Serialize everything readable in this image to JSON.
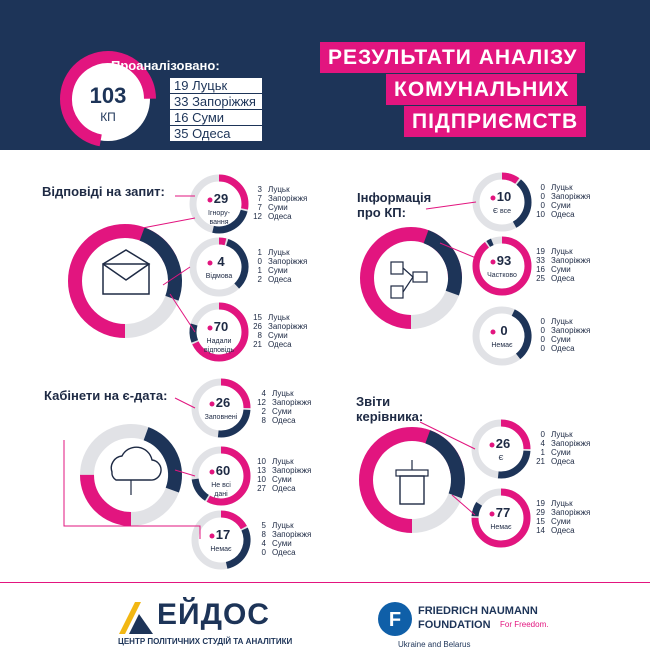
{
  "header": {
    "title_lines": [
      "РЕЗУЛЬТАТИ АНАЛІЗУ",
      "КОМУНАЛЬНИХ",
      "ПІДПРИЄМСТВ"
    ],
    "total_value": "103",
    "total_unit": "КП",
    "analyzed_label": "Проаналізовано:",
    "cities": [
      {
        "count": "19",
        "name": "Луцьк"
      },
      {
        "count": "33",
        "name": "Запоріжжя"
      },
      {
        "count": "16",
        "name": "Суми"
      },
      {
        "count": "35",
        "name": "Одеса"
      }
    ]
  },
  "sections": {
    "responses": {
      "title": "Відповіді на запит:",
      "items": [
        {
          "value": "29",
          "label": "Ігнору-\nвання",
          "fraction": 0.28,
          "cities": [
            [
              "3",
              "Луцьк"
            ],
            [
              "7",
              "Запоріжжя"
            ],
            [
              "7",
              "Суми"
            ],
            [
              "12",
              "Одеса"
            ]
          ]
        },
        {
          "value": "4",
          "label": "Відмова",
          "fraction": 0.04,
          "cities": [
            [
              "1",
              "Луцьк"
            ],
            [
              "0",
              "Запоріжжя"
            ],
            [
              "1",
              "Суми"
            ],
            [
              "2",
              "Одеса"
            ]
          ]
        },
        {
          "value": "70",
          "label": "Надали\nвідповідь",
          "fraction": 0.68,
          "cities": [
            [
              "15",
              "Луцьк"
            ],
            [
              "26",
              "Запоріжжя"
            ],
            [
              "8",
              "Суми"
            ],
            [
              "21",
              "Одеса"
            ]
          ]
        }
      ]
    },
    "info": {
      "title": "Інформація\nпро КП:",
      "items": [
        {
          "value": "10",
          "label": "Є все",
          "fraction": 0.1,
          "cities": [
            [
              "0",
              "Луцьк"
            ],
            [
              "0",
              "Запоріжжя"
            ],
            [
              "0",
              "Суми"
            ],
            [
              "10",
              "Одеса"
            ]
          ]
        },
        {
          "value": "93",
          "label": "Частково",
          "fraction": 0.9,
          "cities": [
            [
              "19",
              "Луцьк"
            ],
            [
              "33",
              "Запоріжжя"
            ],
            [
              "16",
              "Суми"
            ],
            [
              "25",
              "Одеса"
            ]
          ]
        },
        {
          "value": "0",
          "label": "Немає",
          "fraction": 0.0,
          "cities": [
            [
              "0",
              "Луцьк"
            ],
            [
              "0",
              "Запоріжжя"
            ],
            [
              "0",
              "Суми"
            ],
            [
              "0",
              "Одеса"
            ]
          ]
        }
      ]
    },
    "cabinets": {
      "title": "Кабінети на є-дата:",
      "items": [
        {
          "value": "26",
          "label": "Заповнені",
          "fraction": 0.25,
          "cities": [
            [
              "4",
              "Луцьк"
            ],
            [
              "12",
              "Запоріжжя"
            ],
            [
              "2",
              "Суми"
            ],
            [
              "8",
              "Одеса"
            ]
          ]
        },
        {
          "value": "60",
          "label": "Не всі\nдані",
          "fraction": 0.58,
          "cities": [
            [
              "10",
              "Луцьк"
            ],
            [
              "13",
              "Запоріжжя"
            ],
            [
              "10",
              "Суми"
            ],
            [
              "27",
              "Одеса"
            ]
          ]
        },
        {
          "value": "17",
          "label": "Немає",
          "fraction": 0.17,
          "cities": [
            [
              "5",
              "Луцьк"
            ],
            [
              "8",
              "Запоріжжя"
            ],
            [
              "4",
              "Суми"
            ],
            [
              "0",
              "Одеса"
            ]
          ]
        }
      ]
    },
    "reports": {
      "title": "Звіти\nкерівника:",
      "items": [
        {
          "value": "26",
          "label": "Є",
          "fraction": 0.25,
          "cities": [
            [
              "0",
              "Луцьк"
            ],
            [
              "4",
              "Запоріжжя"
            ],
            [
              "1",
              "Суми"
            ],
            [
              "21",
              "Одеса"
            ]
          ]
        },
        {
          "value": "77",
          "label": "Немає",
          "fraction": 0.75,
          "cities": [
            [
              "19",
              "Луцьк"
            ],
            [
              "29",
              "Запоріжжя"
            ],
            [
              "15",
              "Суми"
            ],
            [
              "14",
              "Одеса"
            ]
          ]
        }
      ]
    }
  },
  "footer": {
    "eidos_name": "ЕЙДОС",
    "eidos_subtitle": "ЦЕНТР ПОЛІТИЧНИХ СТУДІЙ ТА АНАЛІТИКИ",
    "fnf_line1": "FRIEDRICH NAUMANN",
    "fnf_line2": "FOUNDATION",
    "fnf_tagline": "For Freedom.",
    "fnf_region": "Ukraine and Belarus"
  },
  "colors": {
    "navy": "#1d3458",
    "pink": "#e2157f",
    "gray": "#e1e2e6",
    "dark": "#1e2a44"
  }
}
